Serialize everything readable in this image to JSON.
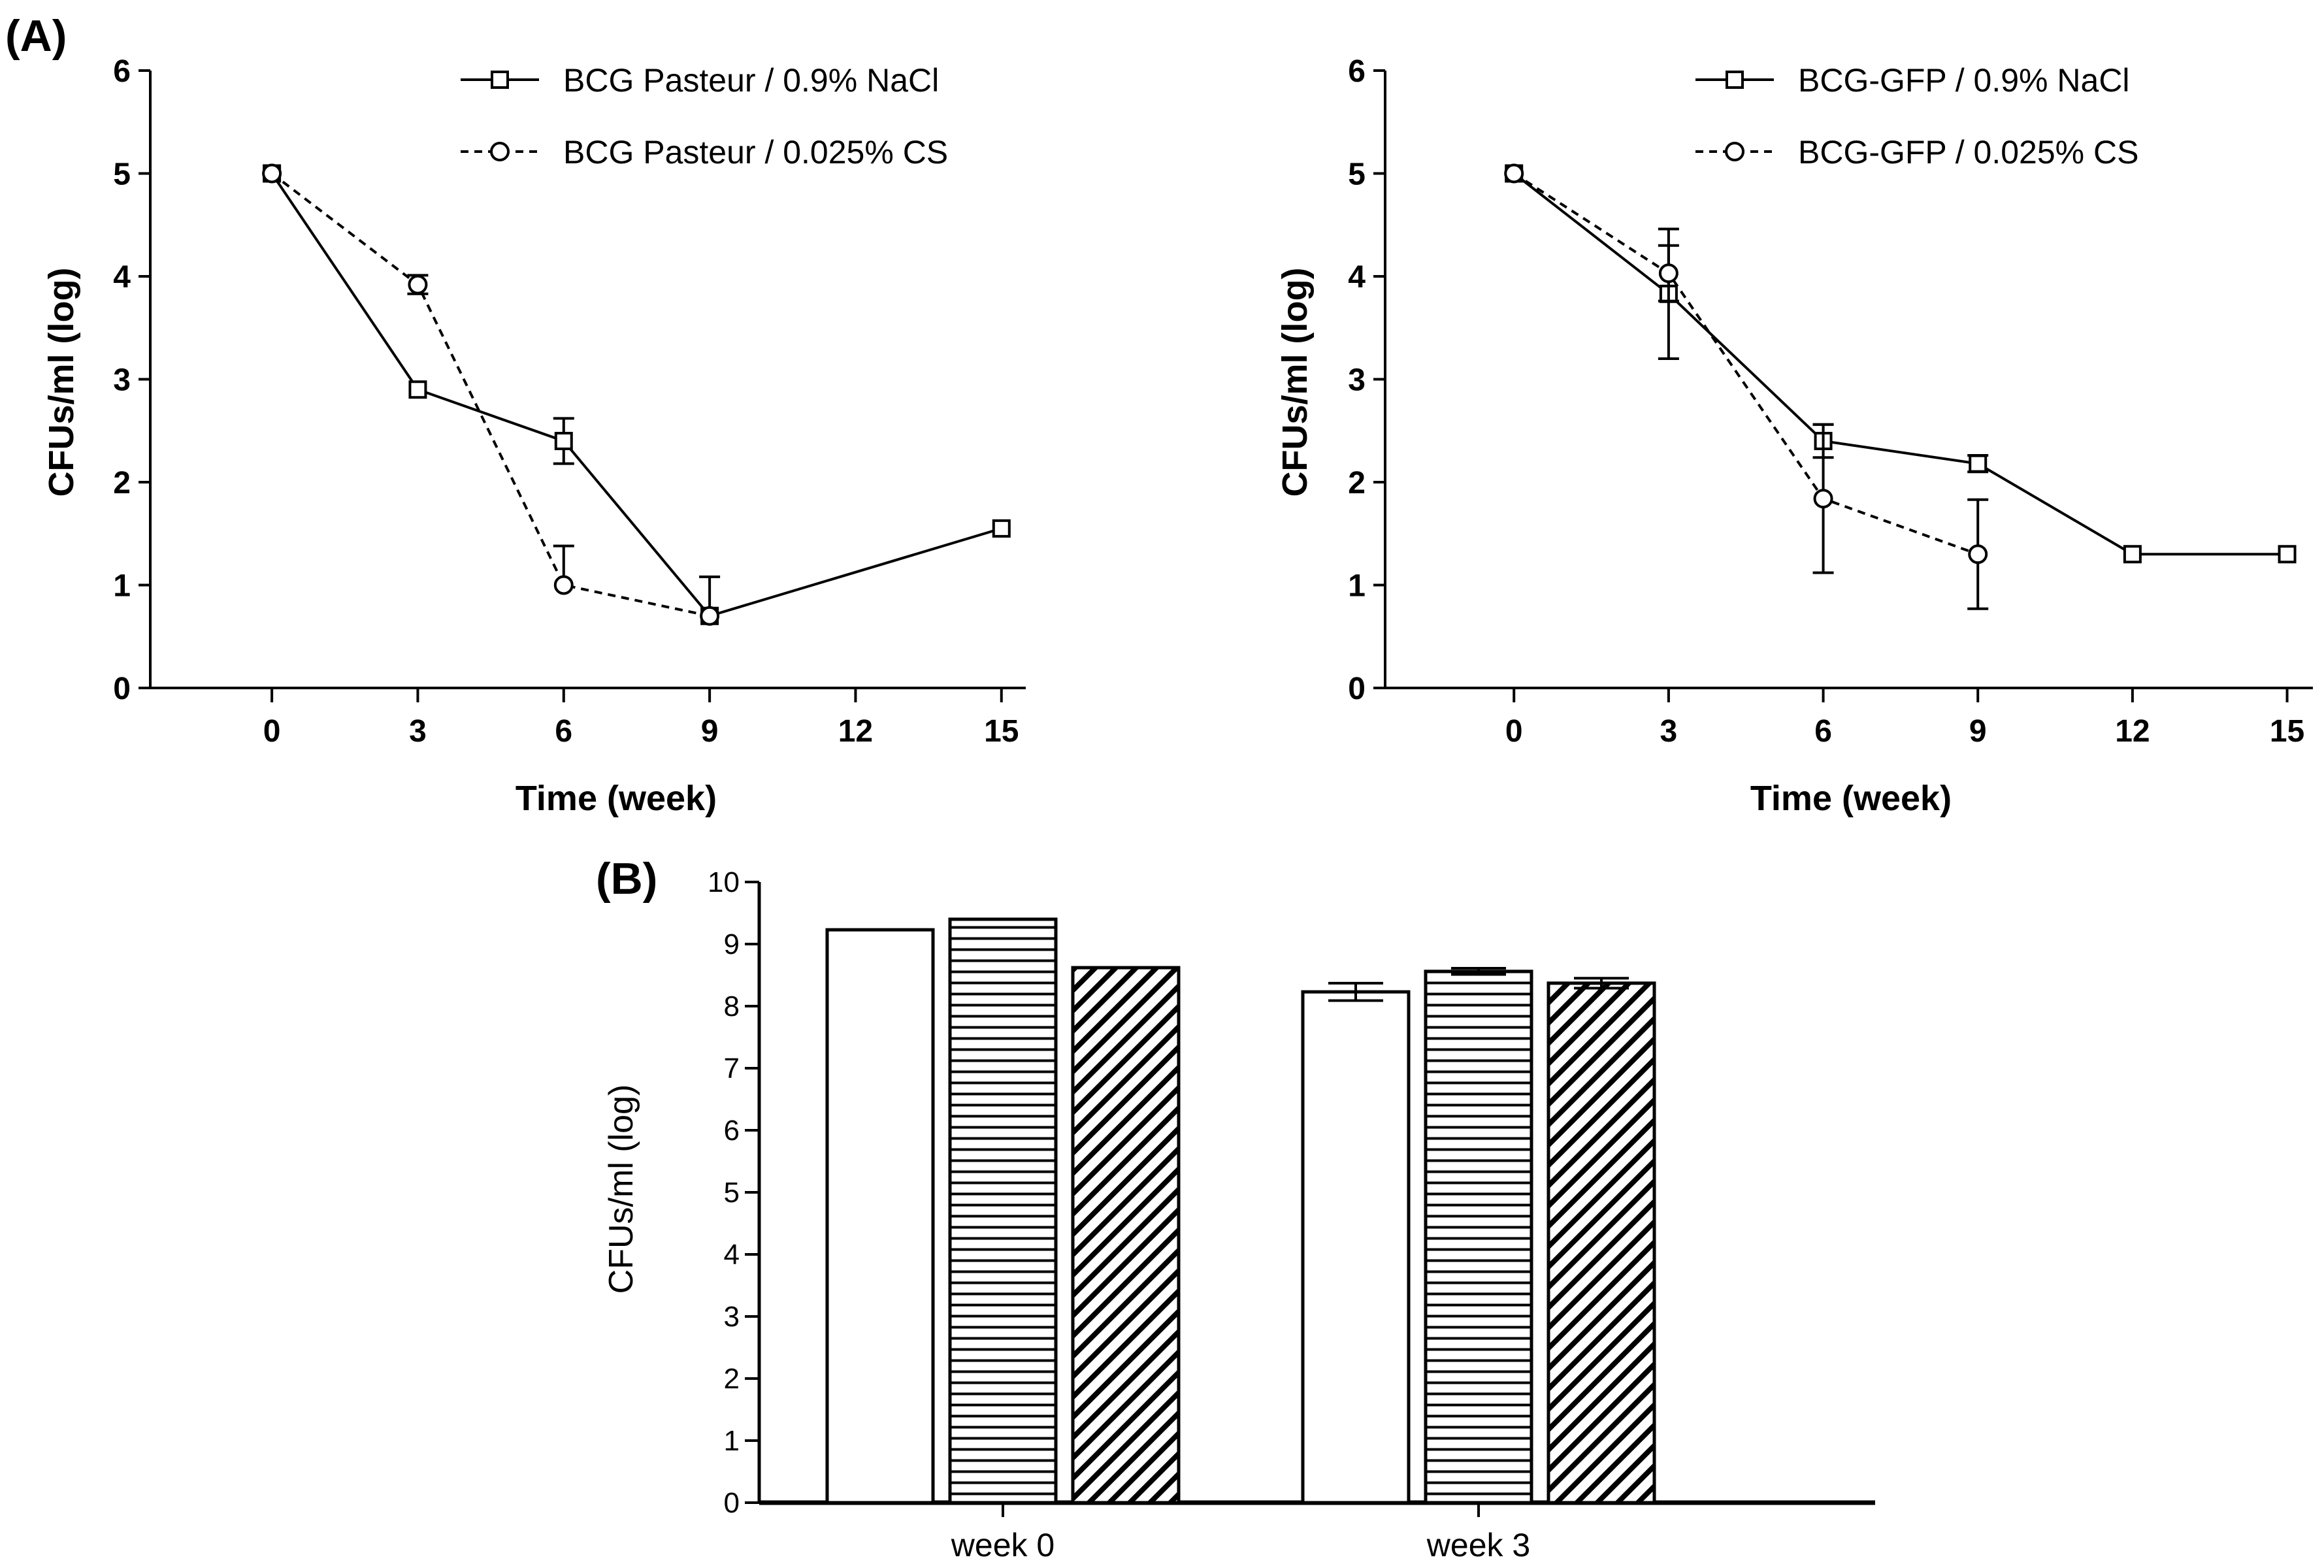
{
  "panel_a_label": "(A)",
  "panel_b_label": "(B)",
  "colors": {
    "ink": "#000000",
    "background": "#ffffff"
  },
  "chart_data": [
    {
      "id": "a-left",
      "type": "line",
      "title": "",
      "xlabel": "Time (week)",
      "ylabel": "CFUs/ml (log)",
      "xlim": [
        -2.5,
        15.5
      ],
      "ylim": [
        0,
        6
      ],
      "xticks": [
        0,
        3,
        6,
        9,
        12,
        15
      ],
      "xtick_labels": [
        "0",
        "3",
        "6",
        "9",
        "12",
        "15"
      ],
      "yticks": [
        0,
        1,
        2,
        3,
        4,
        5,
        6
      ],
      "ytick_labels": [
        "0",
        "1",
        "2",
        "3",
        "4",
        "5",
        "6"
      ],
      "grid": false,
      "legend_position": "top-right",
      "series": [
        {
          "name": "BCG Pasteur / 0.9% NaCl",
          "line_style": "solid",
          "marker": "square",
          "x": [
            0,
            3,
            6,
            9,
            15
          ],
          "y": [
            5,
            2.9,
            2.4,
            0.7,
            1.55
          ],
          "err": [
            0,
            0,
            0.22,
            0,
            0
          ],
          "err_dir": [
            "none",
            "none",
            "both",
            "none",
            "none"
          ]
        },
        {
          "name": "BCG Pasteur / 0.025% CS",
          "line_style": "dashed",
          "marker": "circle",
          "x": [
            0,
            3,
            6,
            9
          ],
          "y": [
            5,
            3.92,
            1.0,
            0.7
          ],
          "err": [
            0,
            0.09,
            0.38,
            0.38
          ],
          "err_dir": [
            "none",
            "both",
            "up",
            "up"
          ]
        }
      ]
    },
    {
      "id": "a-right",
      "type": "line",
      "title": "",
      "xlabel": "Time (week)",
      "ylabel": "CFUs/ml (log)",
      "xlim": [
        -2.5,
        15.5
      ],
      "ylim": [
        0,
        6
      ],
      "xticks": [
        0,
        3,
        6,
        9,
        12,
        15
      ],
      "xtick_labels": [
        "0",
        "3",
        "6",
        "9",
        "12",
        "15"
      ],
      "yticks": [
        0,
        1,
        2,
        3,
        4,
        5,
        6
      ],
      "ytick_labels": [
        "0",
        "1",
        "2",
        "3",
        "4",
        "5",
        "6"
      ],
      "grid": false,
      "legend_position": "top-right",
      "series": [
        {
          "name": "BCG-GFP / 0.9% NaCl",
          "line_style": "solid",
          "marker": "square",
          "x": [
            0,
            3,
            6,
            9,
            12,
            15
          ],
          "y": [
            5,
            3.83,
            2.4,
            2.18,
            1.3,
            1.3
          ],
          "err": [
            0,
            0.63,
            0.16,
            0.08,
            0,
            0
          ],
          "err_dir": [
            "none",
            "both",
            "both",
            "both",
            "none",
            "none"
          ]
        },
        {
          "name": "BCG-GFP / 0.025% CS",
          "line_style": "dashed",
          "marker": "circle",
          "x": [
            0,
            3,
            6,
            9
          ],
          "y": [
            5,
            4.03,
            1.84,
            1.3
          ],
          "err": [
            0,
            0.27,
            0.72,
            0.53
          ],
          "err_dir": [
            "none",
            "both",
            "both",
            "both"
          ]
        }
      ]
    },
    {
      "id": "b",
      "type": "bar",
      "title": "",
      "xlabel": "",
      "ylabel": "CFUs/ml (log)",
      "ylim": [
        0,
        10
      ],
      "yticks": [
        0,
        1,
        2,
        3,
        4,
        5,
        6,
        7,
        8,
        9,
        10
      ],
      "ytick_labels": [
        "0",
        "1",
        "2",
        "3",
        "4",
        "5",
        "6",
        "7",
        "8",
        "9",
        "10"
      ],
      "grid": false,
      "categories": [
        "week 0",
        "week 3"
      ],
      "series": [
        {
          "name": "",
          "pattern": "open",
          "values": [
            9.23,
            8.23
          ],
          "err": [
            0,
            0.14
          ]
        },
        {
          "name": "",
          "pattern": "horizontal-stripes",
          "values": [
            9.4,
            8.56
          ],
          "err": [
            0,
            0.05
          ]
        },
        {
          "name": "",
          "pattern": "diagonal-hatch",
          "values": [
            8.62,
            8.37
          ],
          "err": [
            0,
            0.08
          ]
        }
      ]
    }
  ]
}
